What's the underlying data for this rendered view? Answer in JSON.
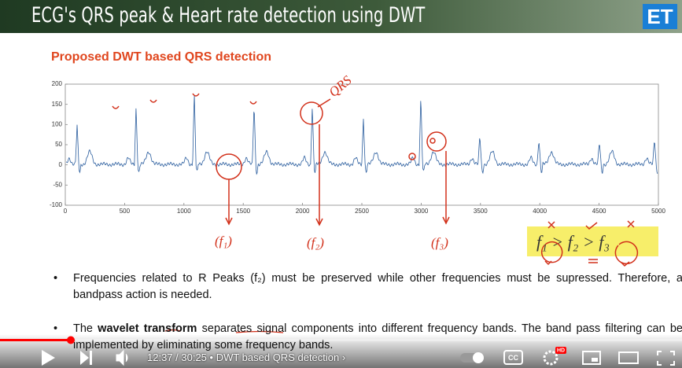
{
  "header": {
    "title": "ECG's QRS peak & Heart rate detection using DWT",
    "logo": "ET"
  },
  "slide": {
    "subtitle": "Proposed DWT based QRS detection",
    "plot": {
      "xlim": [
        0,
        5000
      ],
      "xticks": [
        0,
        500,
        1000,
        1500,
        2000,
        2500,
        3000,
        3500,
        4000,
        4500,
        5000
      ],
      "ylim": [
        -100,
        200
      ],
      "yticks": [
        -100,
        -50,
        0,
        50,
        100,
        150,
        200
      ]
    },
    "annotations": {
      "qrs": "QRS",
      "f1": "(f₁)",
      "f2": "(f₂)",
      "f3": "(f₃)",
      "inequality": "f₁ > f₂ > f₃"
    },
    "bullets": [
      {
        "parts": [
          "Frequencies related to R Peaks (f₂) must be preserved while other frequencies must be supressed. Therefore, a bandpass action is needed."
        ]
      },
      {
        "parts": [
          "The ",
          "wavelet transform",
          " separates signal components into different frequency bands. The band pass filtering can be implemented by eliminating some frequency bands."
        ]
      }
    ]
  },
  "player": {
    "time": "12:37 / 30:25",
    "chapter": "DWT based QRS detection",
    "badge": "HD",
    "cc": "CC"
  }
}
